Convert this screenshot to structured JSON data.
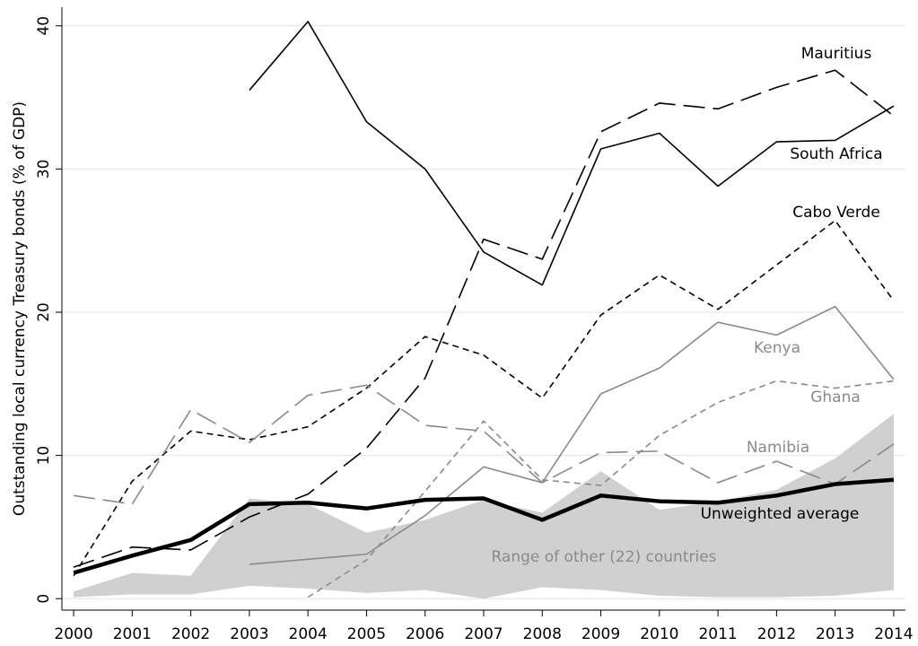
{
  "chart_data": {
    "type": "line",
    "y_label": "Outstanding local currency Treasury bonds (% of GDP)",
    "x": [
      2000,
      2001,
      2002,
      2003,
      2004,
      2005,
      2006,
      2007,
      2008,
      2009,
      2010,
      2011,
      2012,
      2013,
      2014
    ],
    "xlim": [
      1999.8,
      2014.2
    ],
    "xticks": [
      2000,
      2001,
      2002,
      2003,
      2004,
      2005,
      2006,
      2007,
      2008,
      2009,
      2010,
      2011,
      2012,
      2013,
      2014
    ],
    "ylim": [
      -0.8,
      41.3
    ],
    "yticks": [
      0,
      10,
      20,
      30,
      40
    ],
    "grid": true,
    "range": {
      "name": "Range of other (22) countries",
      "color": "#d0d0d0",
      "upper": [
        0.5,
        1.8,
        1.6,
        7.0,
        6.6,
        4.6,
        5.5,
        6.9,
        6.0,
        8.9,
        6.2,
        6.8,
        7.6,
        9.8,
        12.9
      ],
      "lower": [
        0.1,
        0.3,
        0.3,
        0.9,
        0.7,
        0.4,
        0.6,
        0.0,
        0.8,
        0.6,
        0.2,
        0.1,
        0.1,
        0.2,
        0.6
      ]
    },
    "series": [
      {
        "name": "Mauritius",
        "color": "#000000",
        "dash": "long",
        "values": [
          2.2,
          3.6,
          3.4,
          5.7,
          7.3,
          10.5,
          15.4,
          25.1,
          23.7,
          32.6,
          34.6,
          34.2,
          35.7,
          36.9,
          33.7
        ]
      },
      {
        "name": "South Africa",
        "color": "#000000",
        "dash": "solid",
        "values": [
          null,
          null,
          null,
          35.5,
          40.3,
          33.3,
          30.0,
          24.2,
          21.9,
          31.4,
          32.5,
          28.8,
          31.9,
          32.0,
          34.4
        ]
      },
      {
        "name": "Cabo Verde",
        "color": "#000000",
        "dash": "short",
        "values": [
          1.6,
          8.2,
          11.7,
          11.1,
          12.0,
          14.7,
          18.3,
          17.0,
          14.0,
          19.8,
          22.6,
          20.2,
          23.3,
          26.4,
          20.8
        ]
      },
      {
        "name": "Kenya",
        "color": "#8a8a8a",
        "dash": "solid",
        "values": [
          null,
          null,
          null,
          2.4,
          2.75,
          3.1,
          5.8,
          9.2,
          8.1,
          14.3,
          16.1,
          19.3,
          18.4,
          20.4,
          15.3
        ]
      },
      {
        "name": "Ghana",
        "color": "#8a8a8a",
        "dash": "short",
        "values": [
          null,
          null,
          null,
          null,
          0.1,
          2.7,
          7.5,
          12.4,
          8.3,
          7.9,
          11.4,
          13.7,
          15.2,
          14.7,
          15.2
        ]
      },
      {
        "name": "Namibia",
        "color": "#8a8a8a",
        "dash": "long",
        "values": [
          7.2,
          6.6,
          13.2,
          10.9,
          14.2,
          14.9,
          12.1,
          11.7,
          8.1,
          10.2,
          10.3,
          8.1,
          9.6,
          8.0,
          10.8
        ]
      },
      {
        "name": "Unweighted average",
        "color": "#000000",
        "dash": "thick",
        "values": [
          1.8,
          3.0,
          4.1,
          6.6,
          6.7,
          6.3,
          6.9,
          7.0,
          5.5,
          7.2,
          6.8,
          6.7,
          7.2,
          8.0,
          8.3
        ]
      }
    ]
  }
}
